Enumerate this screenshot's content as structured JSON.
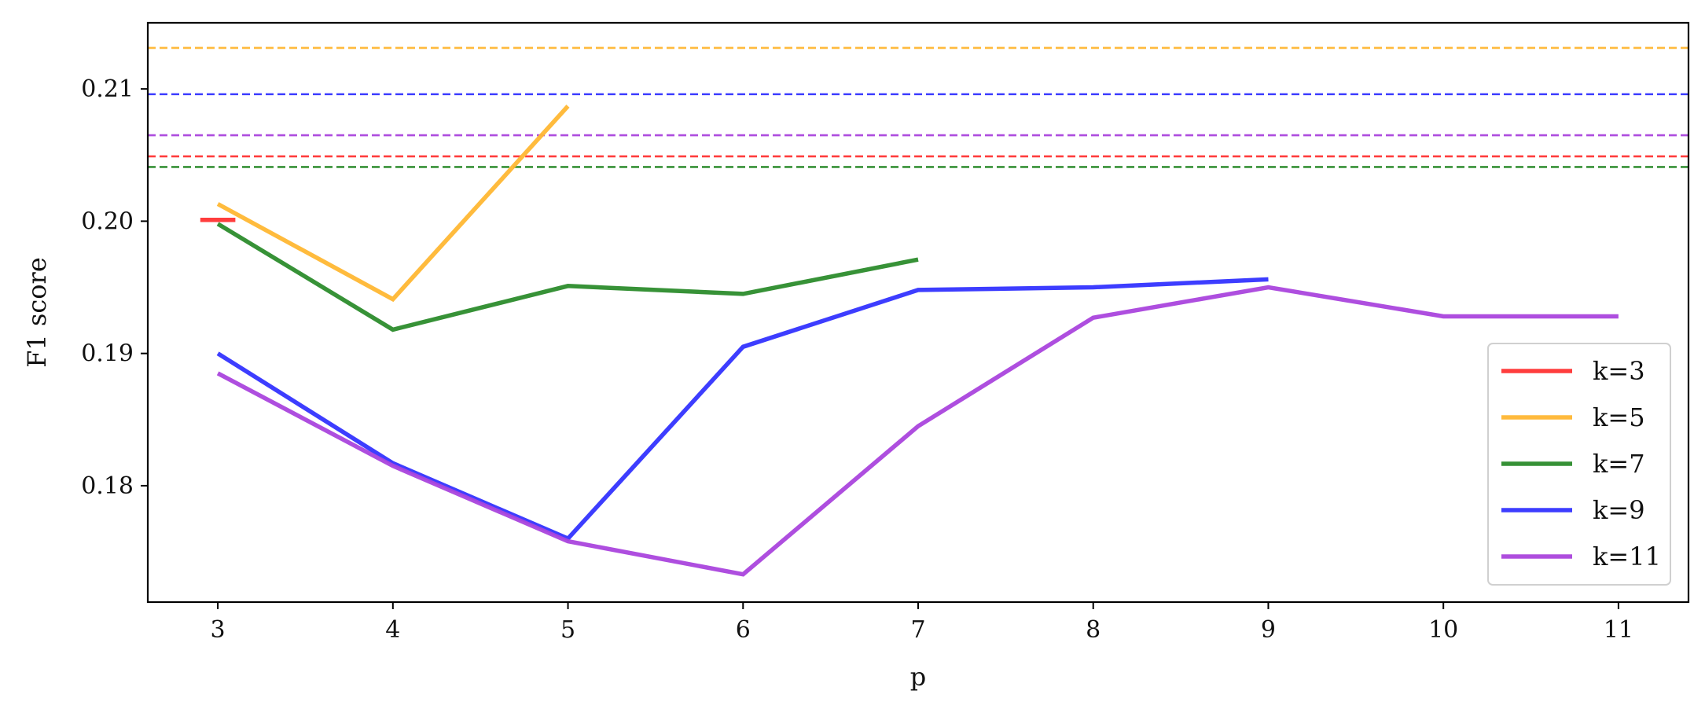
{
  "chart_data": {
    "type": "line",
    "title": "",
    "xlabel": "p",
    "ylabel": "F1 score",
    "xlim": [
      2.6,
      11.4
    ],
    "ylim": [
      0.1712,
      0.215
    ],
    "x_ticks": [
      3,
      4,
      5,
      6,
      7,
      8,
      9,
      10,
      11
    ],
    "y_ticks": [
      0.18,
      0.19,
      0.2,
      0.21
    ],
    "y_tick_labels": [
      "0.18",
      "0.19",
      "0.20",
      "0.21"
    ],
    "grid": false,
    "legend_position": "lower-right",
    "series": [
      {
        "name": "k=3",
        "color": "#ff3333",
        "x": [
          2.9,
          3.1
        ],
        "values": [
          0.2001,
          0.2001
        ],
        "reference": 0.2049
      },
      {
        "name": "k=5",
        "color": "#ffb733",
        "x": [
          3,
          4,
          5
        ],
        "values": [
          0.2013,
          0.1941,
          0.2087
        ],
        "reference": 0.2131
      },
      {
        "name": "k=7",
        "color": "#2c8c2c",
        "x": [
          3,
          4,
          5,
          6,
          7
        ],
        "values": [
          0.1998,
          0.1918,
          0.1951,
          0.1945,
          0.1971
        ],
        "reference": 0.2041
      },
      {
        "name": "k=9",
        "color": "#3333ff",
        "x": [
          3,
          4,
          5,
          6,
          7,
          8,
          9
        ],
        "values": [
          0.19,
          0.1817,
          0.176,
          0.1905,
          0.1948,
          0.195,
          0.1956
        ],
        "reference": 0.2096
      },
      {
        "name": "k=11",
        "color": "#aa44dd",
        "x": [
          3,
          4,
          5,
          6,
          7,
          8,
          9,
          10,
          11
        ],
        "values": [
          0.1885,
          0.1815,
          0.1758,
          0.1733,
          0.1845,
          0.1927,
          0.195,
          0.1928,
          0.1928
        ],
        "reference": 0.2065
      }
    ]
  }
}
